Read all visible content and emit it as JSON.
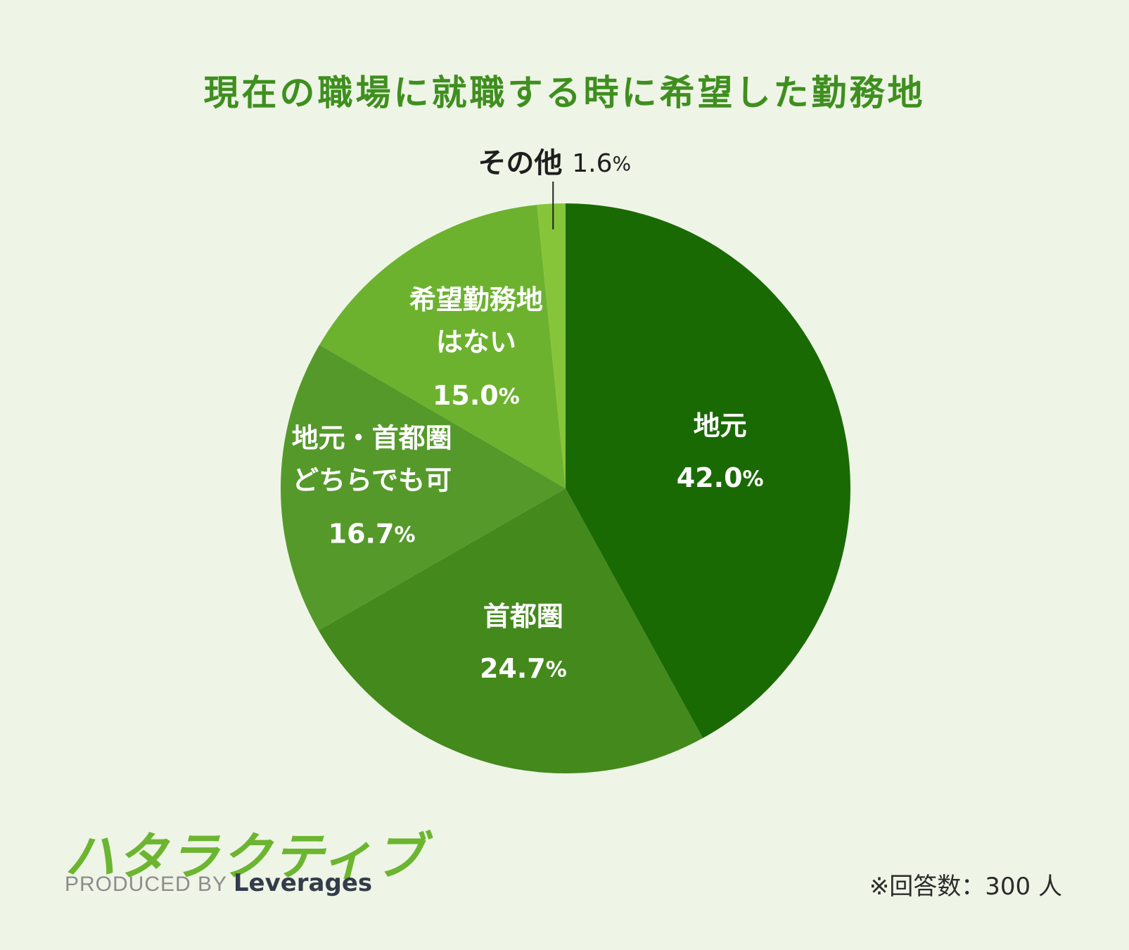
{
  "title": "現在の職場に就職する時に希望した勤務地",
  "chart_data": {
    "type": "pie",
    "title": "現在の職場に就職する時に希望した勤務地",
    "unit": "%",
    "slices": [
      {
        "label_lines": [
          "地元"
        ],
        "value": 42.0,
        "value_text": "42.0",
        "color": "#1a6a03"
      },
      {
        "label_lines": [
          "首都圏"
        ],
        "value": 24.7,
        "value_text": "24.7",
        "color": "#43891c"
      },
      {
        "label_lines": [
          "地元・首都圏",
          "どちらでも可"
        ],
        "value": 16.7,
        "value_text": "16.7",
        "color": "#55992a"
      },
      {
        "label_lines": [
          "希望勤務地",
          "はない"
        ],
        "value": 15.0,
        "value_text": "15.0",
        "color": "#6cb22f"
      },
      {
        "label_lines": [
          "その他"
        ],
        "value": 1.6,
        "value_text": "1.6",
        "color": "#86c53a"
      }
    ]
  },
  "logo": {
    "brand": "ハタラクティブ",
    "produced_by": "PRODUCED BY",
    "company": "Leverages"
  },
  "note": "※回答数：300 人"
}
